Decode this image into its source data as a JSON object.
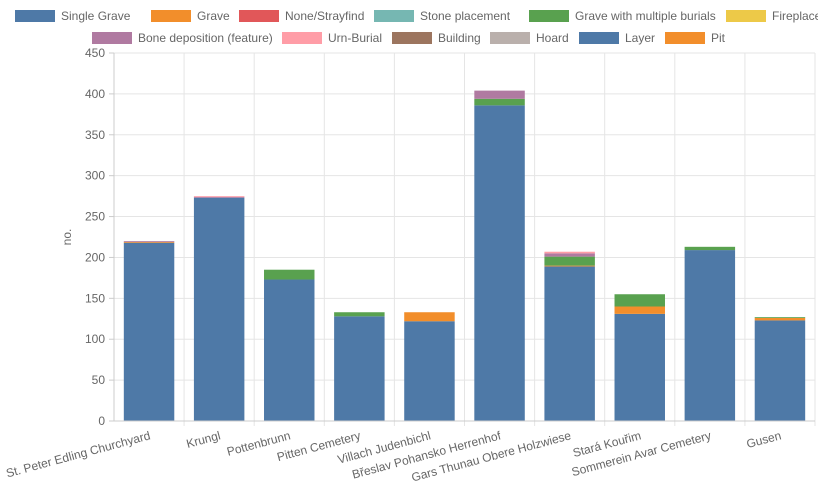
{
  "chart_data": {
    "type": "bar",
    "stacked": true,
    "title": "",
    "xlabel": "",
    "ylabel": "no.",
    "ylim": [
      0,
      450
    ],
    "yticks": [
      0,
      50,
      100,
      150,
      200,
      250,
      300,
      350,
      400,
      450
    ],
    "grid": true,
    "legend_position": "top",
    "categories": [
      "St. Peter Edling Churchyard",
      "Krungl",
      "Pottenbrunn",
      "Pitten Cemetery",
      "Villach Judenbichl",
      "Břeslav Pohansko Herrenhof",
      "Gars Thunau Obere Holzwiese",
      "Stará Kouřim",
      "Sommerein Avar Cemetery",
      "Gusen"
    ],
    "series": [
      {
        "name": "Single Grave",
        "color": "#4e79a7",
        "values": [
          218,
          273,
          173,
          128,
          122,
          386,
          189,
          131,
          209,
          123
        ]
      },
      {
        "name": "Grave",
        "color": "#f28e2b",
        "values": [
          1,
          0,
          0,
          0,
          11,
          0,
          1,
          9,
          0,
          3
        ]
      },
      {
        "name": "None/Strayfind",
        "color": "#e15759",
        "values": [
          0,
          0,
          0,
          0,
          0,
          0,
          0,
          0,
          0,
          0
        ]
      },
      {
        "name": "Stone placement",
        "color": "#76b7b2",
        "values": [
          0,
          0,
          0,
          0,
          0,
          0,
          0,
          0,
          0,
          0
        ]
      },
      {
        "name": "Grave with multiple burials",
        "color": "#59a14f",
        "values": [
          0,
          0,
          12,
          5,
          0,
          8,
          11,
          15,
          4,
          1
        ]
      },
      {
        "name": "Fireplace",
        "color": "#edc948",
        "values": [
          0,
          0,
          0,
          0,
          0,
          0,
          0,
          0,
          0,
          0
        ]
      },
      {
        "name": "Bone deposition (feature)",
        "color": "#b07aa1",
        "values": [
          1,
          1,
          0,
          0,
          0,
          10,
          4,
          0,
          0,
          0
        ]
      },
      {
        "name": "Urn-Burial",
        "color": "#ff9da7",
        "values": [
          0,
          1,
          0,
          0,
          0,
          0,
          2,
          0,
          0,
          0
        ]
      },
      {
        "name": "Building",
        "color": "#9c755f",
        "values": [
          0,
          0,
          0,
          0,
          0,
          0,
          0,
          0,
          0,
          0
        ]
      },
      {
        "name": "Hoard",
        "color": "#bab0ac",
        "values": [
          0,
          0,
          0,
          0,
          0,
          0,
          0,
          0,
          0,
          0
        ]
      },
      {
        "name": "Layer",
        "color": "#4e79a7",
        "values": [
          0,
          0,
          0,
          0,
          0,
          0,
          0,
          0,
          0,
          0
        ]
      },
      {
        "name": "Pit",
        "color": "#f28e2b",
        "values": [
          0,
          0,
          0,
          0,
          0,
          0,
          0,
          0,
          0,
          0
        ]
      }
    ]
  }
}
